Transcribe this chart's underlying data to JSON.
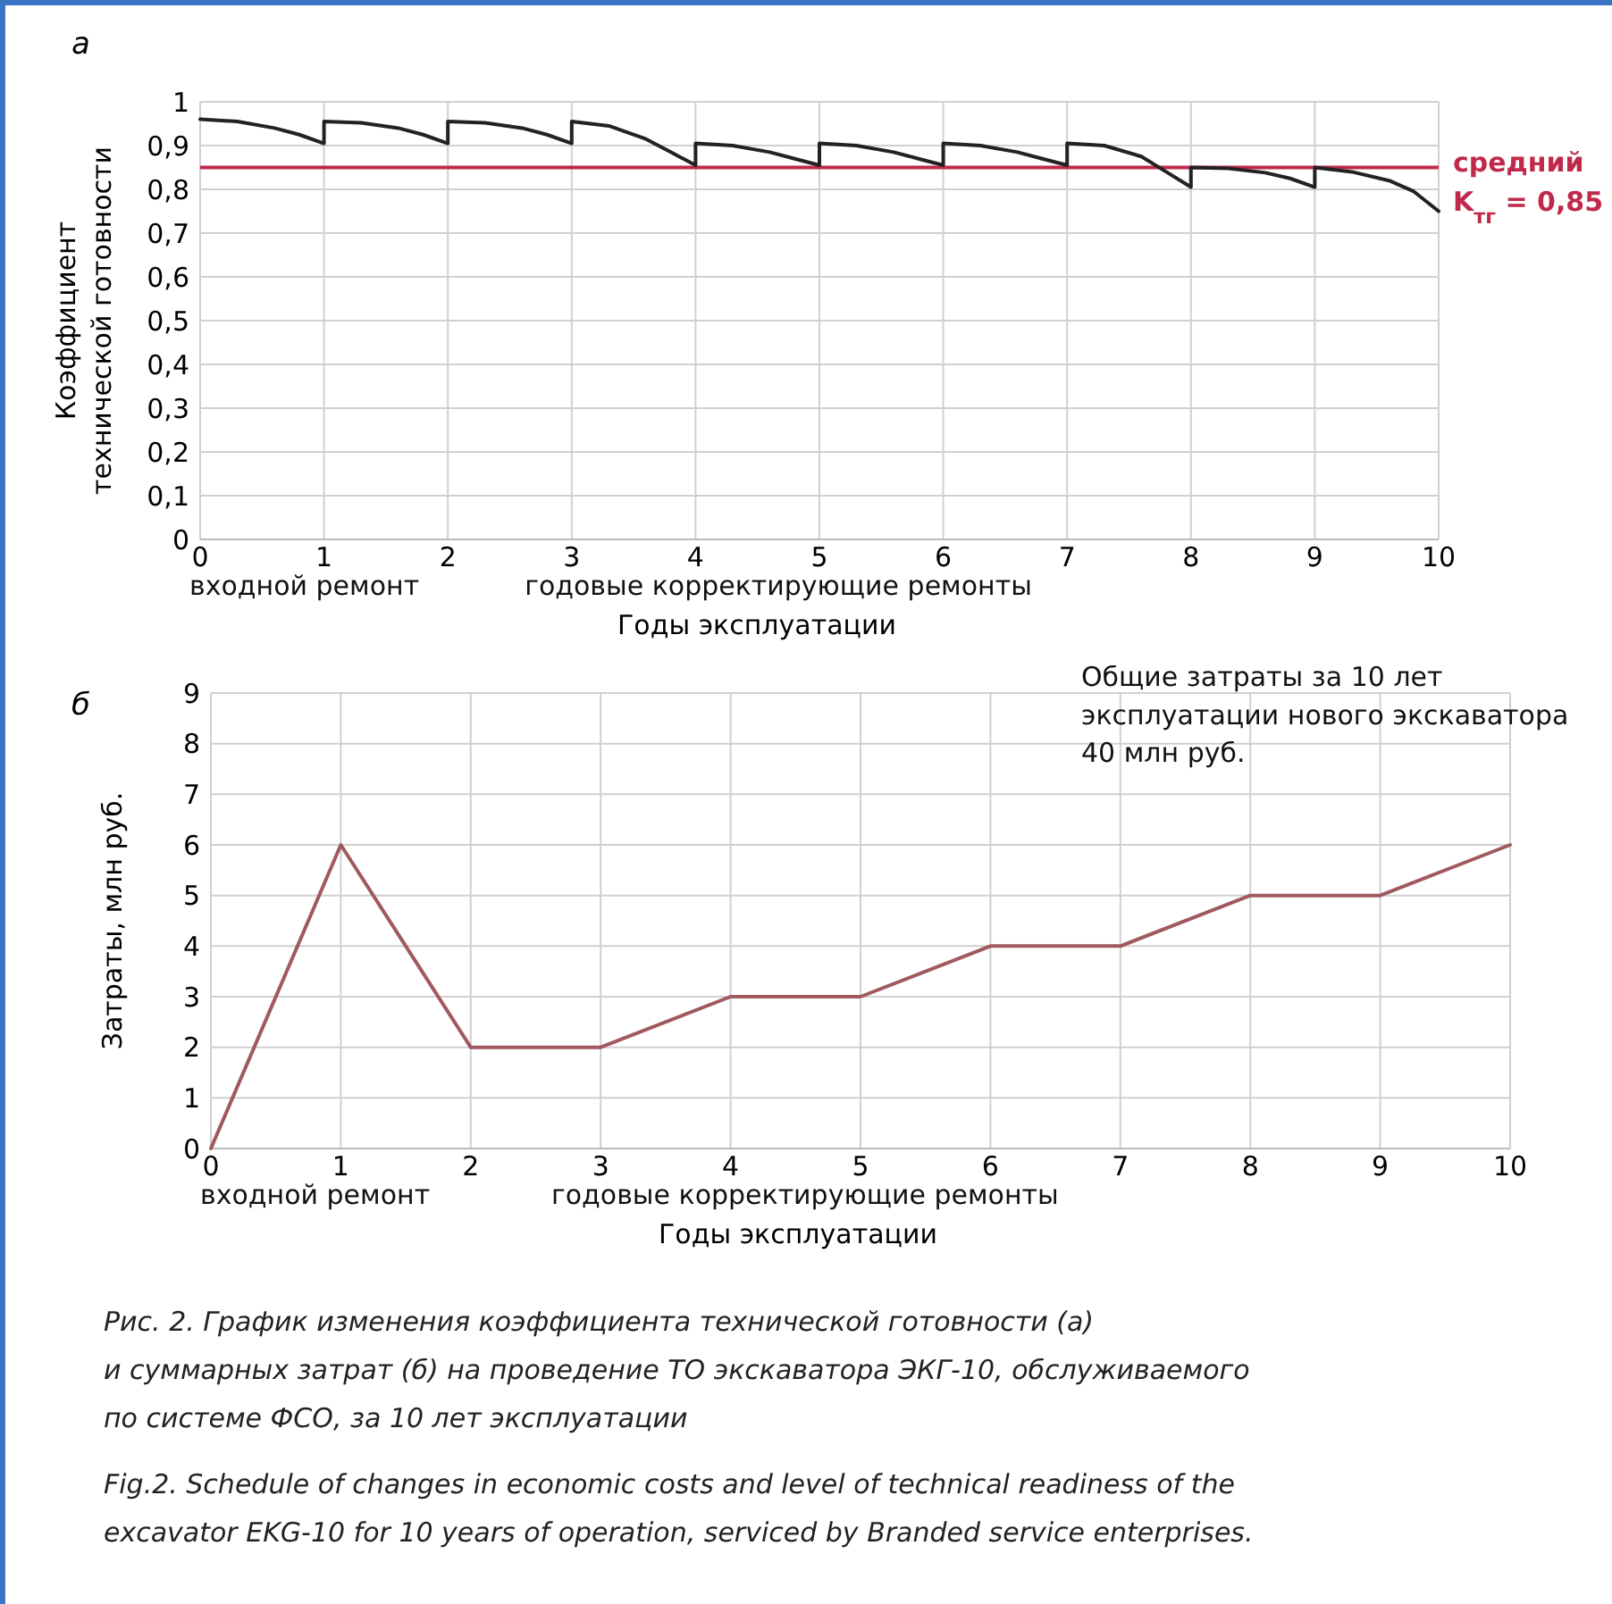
{
  "chart_data": [
    {
      "type": "line",
      "title": "а",
      "xlabel": "Годы эксплуатации",
      "ylabel": "Коэффициент\nтехнической готовности",
      "xlim": [
        0,
        10
      ],
      "xticks": [
        0,
        1,
        2,
        3,
        4,
        5,
        6,
        7,
        8,
        9,
        10
      ],
      "ylim": [
        0,
        1
      ],
      "yticks": [
        0,
        {
          "value": 0.1,
          "label": "0,1"
        },
        {
          "value": 0.2,
          "label": "0,2"
        },
        {
          "value": 0.3,
          "label": "0,3"
        },
        {
          "value": 0.4,
          "label": "0,4"
        },
        {
          "value": 0.5,
          "label": "0,5"
        },
        {
          "value": 0.6,
          "label": "0,6"
        },
        {
          "value": 0.7,
          "label": "0,7"
        },
        {
          "value": 0.8,
          "label": "0,8"
        },
        {
          "value": 0.9,
          "label": "0,9"
        },
        1
      ],
      "grid": true,
      "marker": "none",
      "line_style": "solid",
      "series": [
        {
          "color": "#222222",
          "x": [
            0,
            0.3,
            0.6,
            0.8,
            1,
            1,
            1.3,
            1.6,
            1.8,
            2,
            2,
            2.3,
            2.6,
            2.8,
            3,
            3,
            3.3,
            3.6,
            3.8,
            4,
            4,
            4.3,
            4.6,
            4.8,
            5,
            5,
            5.3,
            5.6,
            5.8,
            6,
            6,
            6.3,
            6.6,
            6.8,
            7,
            7,
            7.3,
            7.6,
            7.8,
            8,
            8,
            8.3,
            8.6,
            8.8,
            9,
            9,
            9.3,
            9.6,
            9.8,
            10
          ],
          "values": [
            0.96,
            0.955,
            0.94,
            0.925,
            0.905,
            0.955,
            0.952,
            0.94,
            0.925,
            0.905,
            0.955,
            0.952,
            0.94,
            0.925,
            0.905,
            0.955,
            0.945,
            0.915,
            0.885,
            0.855,
            0.905,
            0.9,
            0.885,
            0.87,
            0.855,
            0.905,
            0.9,
            0.885,
            0.87,
            0.855,
            0.905,
            0.9,
            0.885,
            0.87,
            0.855,
            0.905,
            0.9,
            0.875,
            0.84,
            0.805,
            0.85,
            0.848,
            0.838,
            0.825,
            0.805,
            0.85,
            0.84,
            0.82,
            0.795,
            0.75
          ]
        }
      ],
      "ref_lines": [
        {
          "axis": "y",
          "value": 0.85,
          "label": "средний\nK$_{тг}$ = 0,85",
          "color": "#c0294a"
        }
      ],
      "annotations": [
        "входной ремонт",
        "годовые корректирующие ремонты"
      ]
    },
    {
      "type": "line",
      "title": "б",
      "xlabel": "Годы эксплуатации",
      "ylabel": "Затраты, млн руб.",
      "xlim": [
        0,
        10
      ],
      "xticks": [
        0,
        1,
        2,
        3,
        4,
        5,
        6,
        7,
        8,
        9,
        10
      ],
      "ylim": [
        0,
        9
      ],
      "yticks": [
        0,
        1,
        2,
        3,
        4,
        5,
        6,
        7,
        8,
        9
      ],
      "grid": true,
      "marker": "none",
      "line_style": "solid",
      "series": [
        {
          "color": "#a0595e",
          "x": [
            0,
            1,
            2,
            3,
            4,
            5,
            6,
            7,
            8,
            9,
            10
          ],
          "values": [
            0,
            6,
            2,
            2,
            3,
            3,
            4,
            4,
            5,
            5,
            6
          ]
        }
      ],
      "annotations": [
        "входной ремонт",
        "годовые корректирующие ремонты",
        "Общие затраты за 10 лет\nэксплуатации нового экскаватора\n40 млн руб.",
        "Рис. 2. График изменения коэффициента технической готовности (а)\nи суммарных затрат (б) на проведение ТО экскаватора ЭКГ-10, обслуживаемого\nпо системе ФСО, за 10 лет эксплуатации",
        "Fig.2. Schedule of changes in economic costs and level of technical readiness of the\nexcavator EKG-10 for 10 years of operation, serviced by Branded service enterprises."
      ]
    }
  ]
}
